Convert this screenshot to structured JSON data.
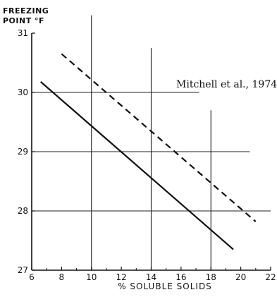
{
  "chart_data": {
    "type": "line",
    "ylabel_line1": "FREEZING",
    "ylabel_line2": "POINT °F",
    "xlabel": "% SOLUBLE SOLIDS",
    "annotation": "Mitchell et al., 1974",
    "xlim": [
      6,
      22
    ],
    "ylim": [
      27,
      31
    ],
    "xticks": [
      6,
      8,
      10,
      12,
      14,
      16,
      18,
      20,
      22
    ],
    "yticks": [
      27,
      28,
      29,
      30,
      31
    ],
    "grid_major_x": [
      10,
      14,
      18
    ],
    "series": [
      {
        "style": "solid",
        "x": [
          6.6,
          19.5
        ],
        "y": [
          30.18,
          27.35
        ]
      },
      {
        "style": "dashed",
        "x": [
          8.0,
          21.0
        ],
        "y": [
          30.65,
          27.82
        ]
      }
    ]
  }
}
